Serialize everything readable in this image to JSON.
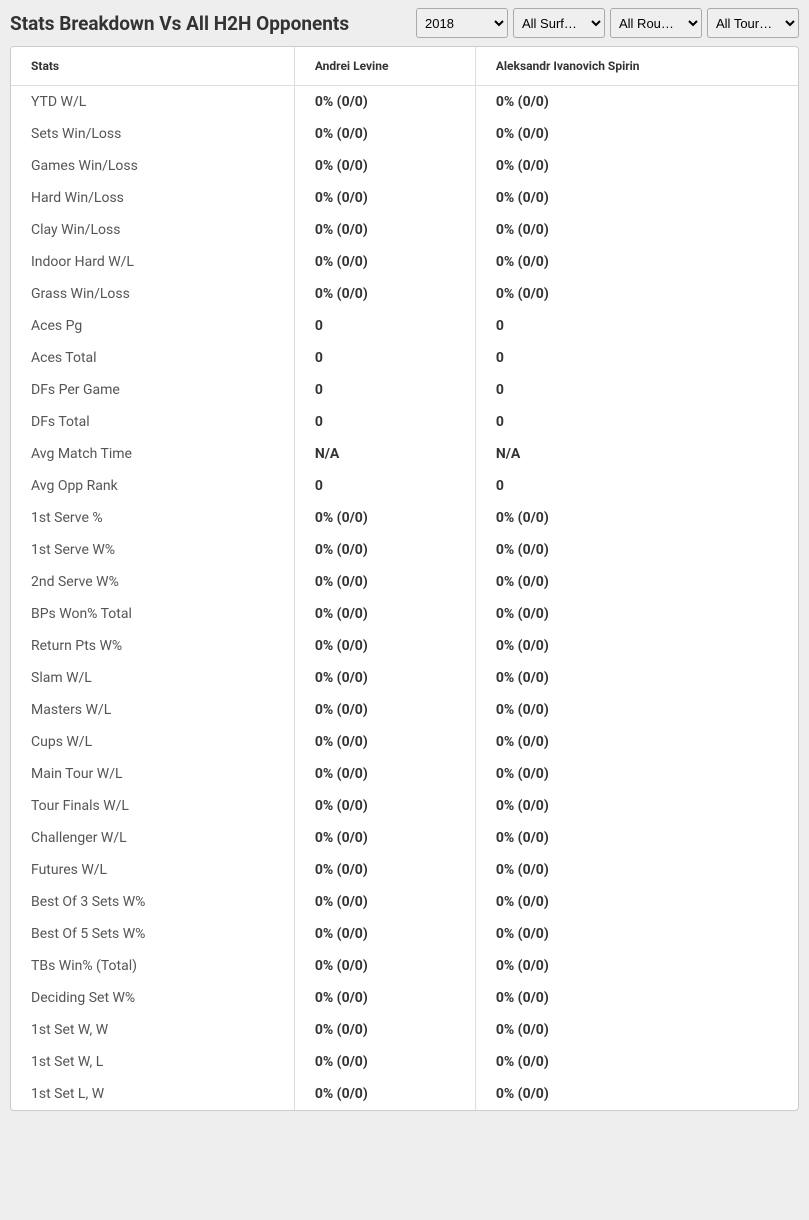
{
  "header": {
    "title": "Stats Breakdown Vs All H2H Opponents"
  },
  "filters": {
    "year": {
      "selected": "2018"
    },
    "surface": {
      "selected": "All Surf…"
    },
    "round": {
      "selected": "All Rou…"
    },
    "tour": {
      "selected": "All Tour…"
    }
  },
  "table": {
    "columns": [
      "Stats",
      "Andrei Levine",
      "Aleksandr Ivanovich Spirin"
    ],
    "rows": [
      {
        "label": "YTD W/L",
        "p1": "0% (0/0)",
        "p2": "0% (0/0)"
      },
      {
        "label": "Sets Win/Loss",
        "p1": "0% (0/0)",
        "p2": "0% (0/0)"
      },
      {
        "label": "Games Win/Loss",
        "p1": "0% (0/0)",
        "p2": "0% (0/0)"
      },
      {
        "label": "Hard Win/Loss",
        "p1": "0% (0/0)",
        "p2": "0% (0/0)"
      },
      {
        "label": "Clay Win/Loss",
        "p1": "0% (0/0)",
        "p2": "0% (0/0)"
      },
      {
        "label": "Indoor Hard W/L",
        "p1": "0% (0/0)",
        "p2": "0% (0/0)"
      },
      {
        "label": "Grass Win/Loss",
        "p1": "0% (0/0)",
        "p2": "0% (0/0)"
      },
      {
        "label": "Aces Pg",
        "p1": "0",
        "p2": "0"
      },
      {
        "label": "Aces Total",
        "p1": "0",
        "p2": "0"
      },
      {
        "label": "DFs Per Game",
        "p1": "0",
        "p2": "0"
      },
      {
        "label": "DFs Total",
        "p1": "0",
        "p2": "0"
      },
      {
        "label": "Avg Match Time",
        "p1": "N/A",
        "p2": "N/A"
      },
      {
        "label": "Avg Opp Rank",
        "p1": "0",
        "p2": "0"
      },
      {
        "label": "1st Serve %",
        "p1": "0% (0/0)",
        "p2": "0% (0/0)"
      },
      {
        "label": "1st Serve W%",
        "p1": "0% (0/0)",
        "p2": "0% (0/0)"
      },
      {
        "label": "2nd Serve W%",
        "p1": "0% (0/0)",
        "p2": "0% (0/0)"
      },
      {
        "label": "BPs Won% Total",
        "p1": "0% (0/0)",
        "p2": "0% (0/0)"
      },
      {
        "label": "Return Pts W%",
        "p1": "0% (0/0)",
        "p2": "0% (0/0)"
      },
      {
        "label": "Slam W/L",
        "p1": "0% (0/0)",
        "p2": "0% (0/0)"
      },
      {
        "label": "Masters W/L",
        "p1": "0% (0/0)",
        "p2": "0% (0/0)"
      },
      {
        "label": "Cups W/L",
        "p1": "0% (0/0)",
        "p2": "0% (0/0)"
      },
      {
        "label": "Main Tour W/L",
        "p1": "0% (0/0)",
        "p2": "0% (0/0)"
      },
      {
        "label": "Tour Finals W/L",
        "p1": "0% (0/0)",
        "p2": "0% (0/0)"
      },
      {
        "label": "Challenger W/L",
        "p1": "0% (0/0)",
        "p2": "0% (0/0)"
      },
      {
        "label": "Futures W/L",
        "p1": "0% (0/0)",
        "p2": "0% (0/0)"
      },
      {
        "label": "Best Of 3 Sets W%",
        "p1": "0% (0/0)",
        "p2": "0% (0/0)"
      },
      {
        "label": "Best Of 5 Sets W%",
        "p1": "0% (0/0)",
        "p2": "0% (0/0)"
      },
      {
        "label": "TBs Win% (Total)",
        "p1": "0% (0/0)",
        "p2": "0% (0/0)"
      },
      {
        "label": "Deciding Set W%",
        "p1": "0% (0/0)",
        "p2": "0% (0/0)"
      },
      {
        "label": "1st Set W, W",
        "p1": "0% (0/0)",
        "p2": "0% (0/0)"
      },
      {
        "label": "1st Set W, L",
        "p1": "0% (0/0)",
        "p2": "0% (0/0)"
      },
      {
        "label": "1st Set L, W",
        "p1": "0% (0/0)",
        "p2": "0% (0/0)"
      }
    ]
  }
}
